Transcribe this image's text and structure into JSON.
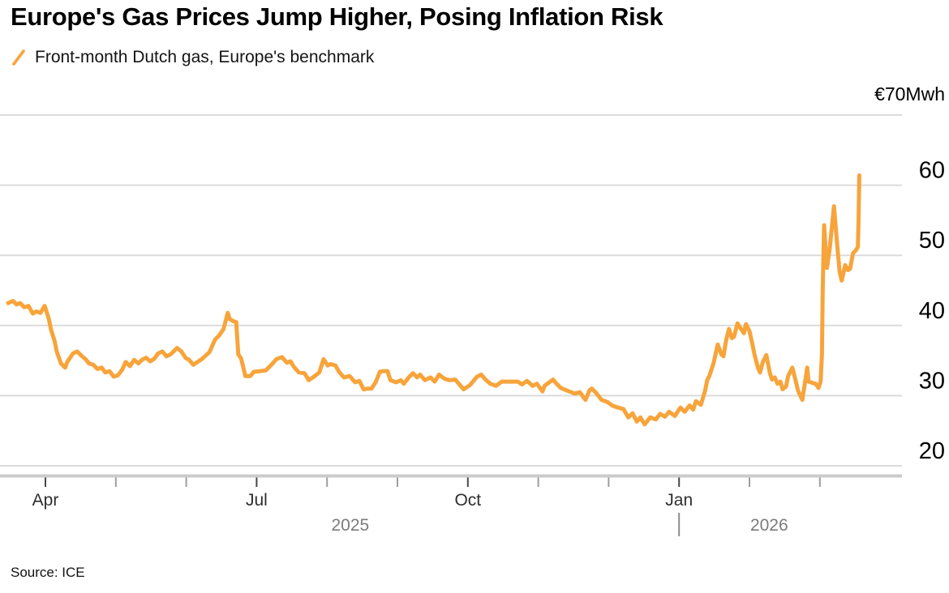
{
  "header": {
    "title": "Europe's Gas Prices Jump Higher, Posing Inflation Risk"
  },
  "legend": {
    "label": "Front-month Dutch gas, Europe's benchmark",
    "swatch_color": "#F7A43B"
  },
  "footer": {
    "source": "Source: ICE"
  },
  "colors": {
    "line": "#F7A43B",
    "gridline": "#dbdbdb",
    "axis_band": "#cbcbcb",
    "major_tick": "#474747",
    "minor_tick": "#9d9da1",
    "year_text": "#7b7b7b"
  },
  "chart_data": {
    "type": "line",
    "title": "Europe's Gas Prices Jump Higher, Posing Inflation Risk",
    "subtitle_legend": "Front-month Dutch gas, Europe's benchmark",
    "source": "Source: ICE",
    "x_unit": "months since 2025-04-01 (t=0 is Apr 2025; t=9 is Jan 2026)",
    "x_axis": {
      "major_ticks": [
        {
          "t": 0,
          "label": "Apr"
        },
        {
          "t": 3,
          "label": "Jul"
        },
        {
          "t": 6,
          "label": "Oct"
        },
        {
          "t": 9,
          "label": "Jan"
        }
      ],
      "minor_ticks": [
        1,
        2,
        4,
        5,
        7,
        8,
        10,
        11
      ],
      "year_labels": [
        {
          "t": 4.33,
          "label": "2025"
        },
        {
          "t": 10.28,
          "label": "2026"
        }
      ],
      "year_divider_t": 9
    },
    "y_axis": {
      "unit_label": "€70Mwh",
      "ticks": [
        60,
        50,
        40,
        30,
        20
      ],
      "gridline_values": [
        70,
        60,
        50,
        40,
        30,
        20
      ],
      "range": [
        20,
        70
      ],
      "labels_position": "right"
    },
    "grid": true,
    "legend_position": "top-left",
    "series": [
      {
        "name": "Front-month Dutch gas (Europe's benchmark), €/MWh",
        "points": [
          [
            -0.53,
            43.2
          ],
          [
            -0.46,
            43.5
          ],
          [
            -0.41,
            43.0
          ],
          [
            -0.36,
            43.2
          ],
          [
            -0.3,
            42.6
          ],
          [
            -0.24,
            42.8
          ],
          [
            -0.18,
            41.7
          ],
          [
            -0.13,
            42.0
          ],
          [
            -0.07,
            41.8
          ],
          [
            -0.01,
            42.8
          ],
          [
            0.05,
            40.9
          ],
          [
            0.08,
            39.4
          ],
          [
            0.13,
            37.8
          ],
          [
            0.16,
            36.3
          ],
          [
            0.22,
            34.6
          ],
          [
            0.28,
            34.0
          ],
          [
            0.31,
            34.8
          ],
          [
            0.39,
            36.0
          ],
          [
            0.45,
            36.3
          ],
          [
            0.51,
            35.7
          ],
          [
            0.57,
            35.2
          ],
          [
            0.62,
            34.6
          ],
          [
            0.68,
            34.4
          ],
          [
            0.74,
            33.8
          ],
          [
            0.8,
            34.0
          ],
          [
            0.85,
            33.3
          ],
          [
            0.91,
            33.5
          ],
          [
            0.97,
            32.7
          ],
          [
            1.03,
            32.9
          ],
          [
            1.09,
            33.7
          ],
          [
            1.14,
            34.8
          ],
          [
            1.2,
            34.2
          ],
          [
            1.26,
            35.1
          ],
          [
            1.32,
            34.6
          ],
          [
            1.37,
            35.1
          ],
          [
            1.43,
            35.4
          ],
          [
            1.49,
            34.9
          ],
          [
            1.55,
            35.3
          ],
          [
            1.6,
            36.0
          ],
          [
            1.66,
            36.3
          ],
          [
            1.72,
            35.6
          ],
          [
            1.78,
            35.9
          ],
          [
            1.84,
            36.5
          ],
          [
            1.87,
            36.8
          ],
          [
            1.93,
            36.3
          ],
          [
            1.99,
            35.4
          ],
          [
            2.04,
            35.1
          ],
          [
            2.1,
            34.4
          ],
          [
            2.16,
            34.8
          ],
          [
            2.22,
            35.2
          ],
          [
            2.33,
            36.2
          ],
          [
            2.41,
            38.0
          ],
          [
            2.47,
            38.6
          ],
          [
            2.53,
            39.5
          ],
          [
            2.59,
            41.8
          ],
          [
            2.62,
            40.9
          ],
          [
            2.67,
            40.6
          ],
          [
            2.71,
            40.5
          ],
          [
            2.74,
            35.9
          ],
          [
            2.78,
            35.3
          ],
          [
            2.84,
            32.8
          ],
          [
            2.91,
            32.8
          ],
          [
            2.96,
            33.4
          ],
          [
            3.05,
            33.5
          ],
          [
            3.13,
            33.6
          ],
          [
            3.22,
            34.5
          ],
          [
            3.28,
            35.2
          ],
          [
            3.36,
            35.5
          ],
          [
            3.43,
            34.7
          ],
          [
            3.48,
            34.9
          ],
          [
            3.53,
            34.1
          ],
          [
            3.6,
            33.3
          ],
          [
            3.68,
            33.2
          ],
          [
            3.74,
            32.2
          ],
          [
            3.8,
            32.6
          ],
          [
            3.89,
            33.3
          ],
          [
            3.95,
            35.2
          ],
          [
            4.01,
            34.3
          ],
          [
            4.05,
            34.5
          ],
          [
            4.12,
            34.3
          ],
          [
            4.17,
            33.4
          ],
          [
            4.24,
            32.6
          ],
          [
            4.32,
            32.8
          ],
          [
            4.4,
            31.9
          ],
          [
            4.46,
            32.1
          ],
          [
            4.52,
            30.9
          ],
          [
            4.58,
            31.0
          ],
          [
            4.63,
            31.0
          ],
          [
            4.69,
            31.9
          ],
          [
            4.75,
            33.4
          ],
          [
            4.8,
            33.5
          ],
          [
            4.86,
            33.5
          ],
          [
            4.9,
            32.2
          ],
          [
            4.98,
            31.9
          ],
          [
            5.05,
            32.2
          ],
          [
            5.09,
            31.7
          ],
          [
            5.16,
            32.6
          ],
          [
            5.22,
            33.2
          ],
          [
            5.28,
            32.6
          ],
          [
            5.32,
            33.0
          ],
          [
            5.39,
            32.2
          ],
          [
            5.47,
            32.6
          ],
          [
            5.53,
            32.0
          ],
          [
            5.59,
            33.0
          ],
          [
            5.67,
            32.4
          ],
          [
            5.74,
            32.2
          ],
          [
            5.82,
            32.3
          ],
          [
            5.88,
            31.6
          ],
          [
            5.94,
            30.9
          ],
          [
            6.03,
            31.5
          ],
          [
            6.13,
            32.7
          ],
          [
            6.19,
            33.0
          ],
          [
            6.25,
            32.3
          ],
          [
            6.32,
            31.7
          ],
          [
            6.4,
            31.4
          ],
          [
            6.48,
            32.0
          ],
          [
            6.59,
            32.0
          ],
          [
            6.71,
            32.0
          ],
          [
            6.77,
            31.6
          ],
          [
            6.84,
            32.1
          ],
          [
            6.92,
            31.4
          ],
          [
            6.98,
            31.7
          ],
          [
            7.06,
            30.6
          ],
          [
            7.09,
            31.4
          ],
          [
            7.21,
            32.3
          ],
          [
            7.26,
            31.7
          ],
          [
            7.32,
            31.1
          ],
          [
            7.44,
            30.6
          ],
          [
            7.52,
            30.3
          ],
          [
            7.59,
            30.5
          ],
          [
            7.67,
            29.4
          ],
          [
            7.73,
            30.8
          ],
          [
            7.76,
            31.0
          ],
          [
            7.82,
            30.4
          ],
          [
            7.9,
            29.4
          ],
          [
            7.98,
            29.1
          ],
          [
            8.05,
            28.6
          ],
          [
            8.13,
            28.3
          ],
          [
            8.21,
            28.1
          ],
          [
            8.28,
            26.9
          ],
          [
            8.34,
            27.5
          ],
          [
            8.4,
            26.3
          ],
          [
            8.45,
            26.9
          ],
          [
            8.51,
            25.9
          ],
          [
            8.59,
            26.9
          ],
          [
            8.67,
            26.6
          ],
          [
            8.73,
            27.4
          ],
          [
            8.8,
            27.0
          ],
          [
            8.86,
            27.7
          ],
          [
            8.94,
            27.1
          ],
          [
            9.02,
            28.3
          ],
          [
            9.08,
            27.7
          ],
          [
            9.15,
            28.6
          ],
          [
            9.2,
            28.0
          ],
          [
            9.24,
            29.2
          ],
          [
            9.31,
            28.7
          ],
          [
            9.37,
            30.7
          ],
          [
            9.4,
            32.2
          ],
          [
            9.43,
            32.8
          ],
          [
            9.49,
            34.6
          ],
          [
            9.55,
            37.3
          ],
          [
            9.6,
            35.9
          ],
          [
            9.63,
            35.6
          ],
          [
            9.67,
            38.0
          ],
          [
            9.71,
            39.5
          ],
          [
            9.75,
            38.2
          ],
          [
            9.78,
            38.4
          ],
          [
            9.83,
            40.3
          ],
          [
            9.88,
            39.5
          ],
          [
            9.92,
            38.9
          ],
          [
            9.95,
            40.2
          ],
          [
            10.0,
            39.2
          ],
          [
            10.04,
            37.4
          ],
          [
            10.07,
            35.9
          ],
          [
            10.12,
            34.0
          ],
          [
            10.15,
            33.3
          ],
          [
            10.19,
            34.8
          ],
          [
            10.24,
            35.8
          ],
          [
            10.29,
            33.2
          ],
          [
            10.32,
            32.3
          ],
          [
            10.36,
            32.6
          ],
          [
            10.4,
            31.7
          ],
          [
            10.44,
            32.0
          ],
          [
            10.47,
            30.9
          ],
          [
            10.52,
            31.3
          ],
          [
            10.55,
            32.8
          ],
          [
            10.61,
            34.0
          ],
          [
            10.65,
            32.4
          ],
          [
            10.69,
            30.7
          ],
          [
            10.75,
            29.4
          ],
          [
            10.79,
            32.0
          ],
          [
            10.82,
            34.0
          ],
          [
            10.84,
            32.0
          ],
          [
            10.9,
            31.8
          ],
          [
            10.94,
            31.7
          ],
          [
            10.98,
            31.1
          ],
          [
            11.01,
            32.0
          ],
          [
            11.03,
            36.0
          ],
          [
            11.04,
            45.0
          ],
          [
            11.06,
            54.3
          ],
          [
            11.1,
            48.2
          ],
          [
            11.14,
            51.0
          ],
          [
            11.2,
            57.0
          ],
          [
            11.25,
            51.0
          ],
          [
            11.28,
            47.7
          ],
          [
            11.31,
            46.4
          ],
          [
            11.36,
            48.6
          ],
          [
            11.4,
            47.9
          ],
          [
            11.43,
            48.1
          ],
          [
            11.47,
            50.3
          ],
          [
            11.51,
            50.7
          ],
          [
            11.54,
            51.2
          ],
          [
            11.55,
            55.0
          ],
          [
            11.56,
            61.4
          ]
        ]
      }
    ]
  }
}
